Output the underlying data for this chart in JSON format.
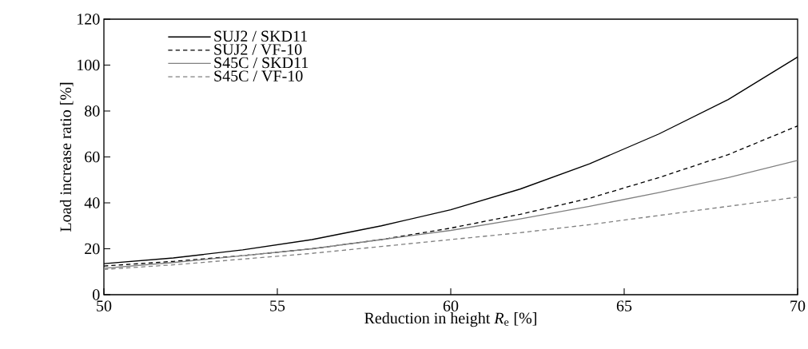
{
  "chart_data": {
    "type": "line",
    "xlabel": "Reduction in height *R*$_{e}$ [%]",
    "ylabel": "Load increase ratio [%]",
    "x": [
      50,
      52,
      54,
      56,
      58,
      60,
      62,
      64,
      66,
      68,
      70
    ],
    "series": [
      {
        "name": "SUJ2 / SKD11",
        "color": "#000000",
        "line_style": "solid",
        "values": [
          13.5,
          16,
          19.5,
          24,
          30,
          37,
          46,
          57,
          70,
          85,
          103.5
        ]
      },
      {
        "name": "SUJ2 / VF-10",
        "color": "#000000",
        "line_style": "dashed",
        "values": [
          12.5,
          14.5,
          17,
          20,
          24,
          29,
          35,
          42,
          51,
          61,
          73.5
        ]
      },
      {
        "name": "S45C / SKD11",
        "color": "#808080",
        "line_style": "solid",
        "values": [
          11.5,
          14,
          17,
          20,
          24,
          28,
          33,
          38.5,
          44.5,
          51,
          58.5
        ]
      },
      {
        "name": "S45C / VF-10",
        "color": "#808080",
        "line_style": "dashed",
        "values": [
          11,
          13,
          15.5,
          18,
          21,
          24,
          27,
          30.5,
          34.5,
          38.5,
          42.5
        ]
      }
    ],
    "xlim": [
      50,
      70
    ],
    "xticks": [
      50,
      55,
      60,
      65,
      70
    ],
    "ylim": [
      0,
      120
    ],
    "yticks": [
      0,
      20,
      40,
      60,
      80,
      100,
      120
    ],
    "grid": false,
    "legend": "top left",
    "marker": "none"
  }
}
